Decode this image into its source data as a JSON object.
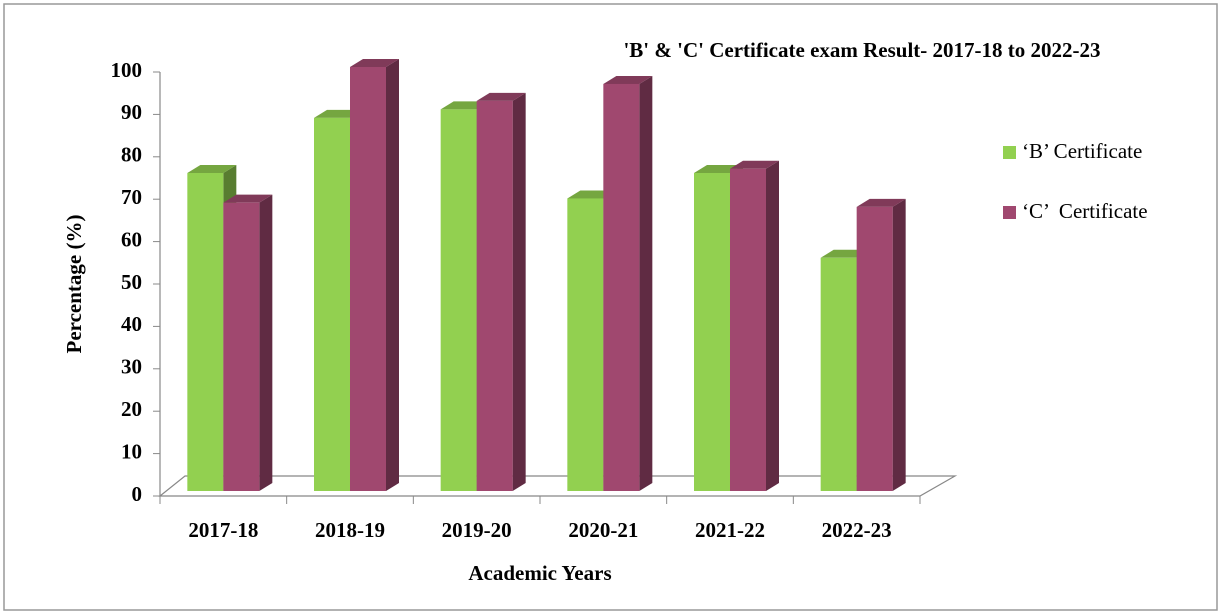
{
  "chart_data": {
    "type": "bar3d",
    "title": "'B' & 'C' Certificate exam Result- 2017-18 to 2022-23",
    "x_label": "Academic Years",
    "y_label": "Percentage (%)",
    "categories": [
      "2017-18",
      "2018-19",
      "2019-20",
      "2020-21",
      "2021-22",
      "2022-23"
    ],
    "series": [
      {
        "name": "‘B’ Certificate",
        "color": "#92d050",
        "values": [
          75,
          88,
          90,
          69,
          75,
          55
        ]
      },
      {
        "name": "‘C’  Certificate",
        "color": "#a0486f",
        "values": [
          68,
          100,
          92,
          96,
          76,
          67
        ]
      }
    ],
    "ylim": [
      0,
      100
    ],
    "yticks": [
      0,
      10,
      20,
      30,
      40,
      50,
      60,
      70,
      80,
      90,
      100
    ],
    "legend": "right"
  }
}
